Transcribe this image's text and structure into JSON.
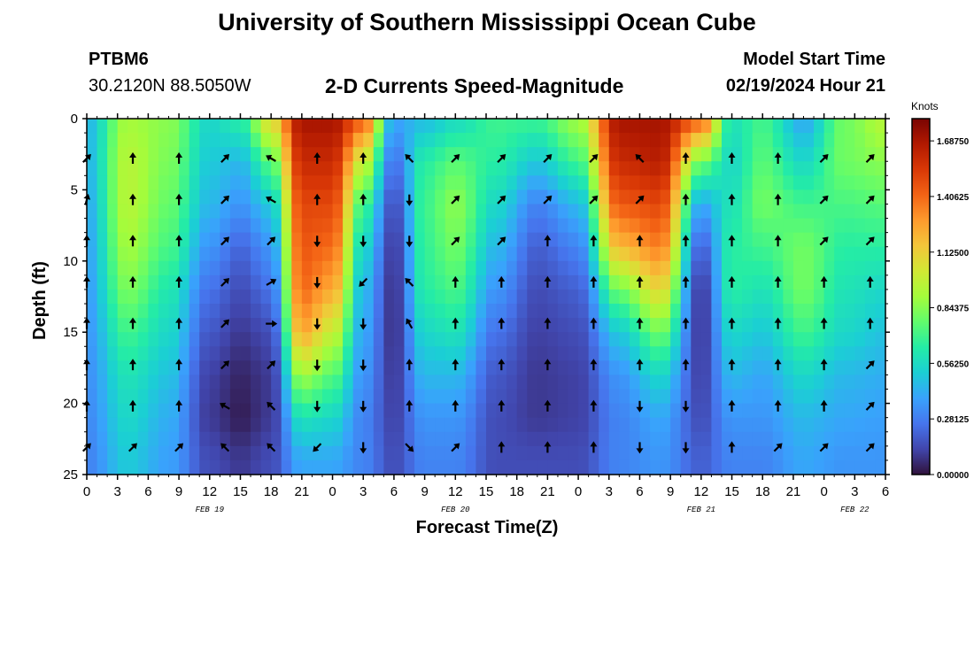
{
  "header": {
    "title": "University of Southern Mississippi Ocean Cube",
    "station_id": "PTBM6",
    "station_coords": "30.2120N  88.5050W",
    "plot_title": "2-D Currents Speed-Magnitude",
    "model_start_label": "Model Start Time",
    "model_start_value": "02/19/2024 Hour 21"
  },
  "footer": {
    "title": "University of Southern Mississippi Ocean Cube"
  },
  "chart_data": {
    "type": "heatmap",
    "title": "2-D Currents Speed-Magnitude",
    "xlabel": "Forecast Time(Z)",
    "ylabel": "Depth (ft)",
    "x_ticks": [
      "0",
      "3",
      "6",
      "9",
      "12",
      "15",
      "18",
      "21",
      "0",
      "3",
      "6",
      "9",
      "12",
      "15",
      "18",
      "21",
      "0",
      "3",
      "6",
      "9",
      "12",
      "15",
      "18",
      "21",
      "0",
      "3",
      "6"
    ],
    "x_range_hours": [
      0,
      78
    ],
    "date_labels": [
      {
        "label": "FEB 19",
        "hour": 12
      },
      {
        "label": "FEB 20",
        "hour": 36
      },
      {
        "label": "FEB 21",
        "hour": 60
      },
      {
        "label": "FEB 22",
        "hour": 75
      }
    ],
    "y_ticks": [
      0,
      5,
      10,
      15,
      20,
      25
    ],
    "ylim": [
      0,
      25
    ],
    "colorbar": {
      "unit": "Knots",
      "min": 0.0,
      "max": 1.8,
      "labels": [
        "1.68750",
        "1.40625",
        "1.12500",
        "0.84375",
        "0.56250",
        "0.28125",
        "0.00000"
      ],
      "label_values": [
        1.6875,
        1.40625,
        1.125,
        0.84375,
        0.5625,
        0.28125,
        0.0
      ],
      "colormap": [
        "#30123b",
        "#4145ab",
        "#4675ed",
        "#39a2fc",
        "#1bcfd4",
        "#24eca6",
        "#61fc6c",
        "#a4fc3b",
        "#d1e834",
        "#f3c63a",
        "#fe9b2d",
        "#f36315",
        "#d93806",
        "#b11901",
        "#7a0402"
      ]
    },
    "depths_ft": [
      0,
      3,
      6,
      9,
      12,
      15,
      18,
      21,
      24
    ],
    "speed_profiles": [
      {
        "hour": 0,
        "speeds": [
          0.45,
          0.45,
          0.42,
          0.4,
          0.38,
          0.36,
          0.34,
          0.32,
          0.3
        ]
      },
      {
        "hour": 4,
        "speeds": [
          0.9,
          0.95,
          0.95,
          0.9,
          0.82,
          0.7,
          0.6,
          0.55,
          0.5
        ]
      },
      {
        "hour": 8,
        "speeds": [
          0.85,
          0.82,
          0.78,
          0.72,
          0.62,
          0.55,
          0.48,
          0.42,
          0.38
        ]
      },
      {
        "hour": 12,
        "speeds": [
          0.55,
          0.5,
          0.45,
          0.35,
          0.25,
          0.18,
          0.12,
          0.1,
          0.15
        ]
      },
      {
        "hour": 15,
        "speeds": [
          0.65,
          0.45,
          0.35,
          0.22,
          0.15,
          0.1,
          0.05,
          0.03,
          0.1
        ]
      },
      {
        "hour": 18,
        "speeds": [
          1.1,
          0.75,
          0.5,
          0.35,
          0.25,
          0.15,
          0.1,
          0.1,
          0.15
        ]
      },
      {
        "hour": 21,
        "speeds": [
          1.7,
          1.6,
          1.5,
          1.45,
          1.4,
          1.25,
          0.9,
          0.6,
          0.4
        ]
      },
      {
        "hour": 24,
        "speeds": [
          1.7,
          1.6,
          1.5,
          1.4,
          1.25,
          1.0,
          0.75,
          0.55,
          0.4
        ]
      },
      {
        "hour": 27,
        "speeds": [
          1.45,
          1.0,
          0.7,
          0.55,
          0.45,
          0.4,
          0.35,
          0.3,
          0.3
        ]
      },
      {
        "hour": 30,
        "speeds": [
          0.4,
          0.25,
          0.15,
          0.1,
          0.08,
          0.08,
          0.1,
          0.12,
          0.15
        ]
      },
      {
        "hour": 33,
        "speeds": [
          0.45,
          0.65,
          0.7,
          0.68,
          0.65,
          0.55,
          0.45,
          0.35,
          0.3
        ]
      },
      {
        "hour": 36,
        "speeds": [
          0.55,
          0.75,
          0.85,
          0.8,
          0.72,
          0.6,
          0.45,
          0.35,
          0.3
        ]
      },
      {
        "hour": 40,
        "speeds": [
          0.7,
          0.65,
          0.55,
          0.45,
          0.35,
          0.25,
          0.18,
          0.15,
          0.15
        ]
      },
      {
        "hour": 44,
        "speeds": [
          0.7,
          0.5,
          0.3,
          0.2,
          0.15,
          0.12,
          0.1,
          0.1,
          0.15
        ]
      },
      {
        "hour": 48,
        "speeds": [
          0.9,
          0.7,
          0.45,
          0.3,
          0.2,
          0.15,
          0.12,
          0.12,
          0.15
        ]
      },
      {
        "hour": 52,
        "speeds": [
          1.7,
          1.6,
          1.45,
          1.2,
          0.8,
          0.5,
          0.35,
          0.3,
          0.3
        ]
      },
      {
        "hour": 56,
        "speeds": [
          1.7,
          1.65,
          1.5,
          1.35,
          1.1,
          0.8,
          0.55,
          0.4,
          0.35
        ]
      },
      {
        "hour": 60,
        "speeds": [
          1.45,
          0.8,
          0.4,
          0.2,
          0.1,
          0.1,
          0.12,
          0.15,
          0.2
        ]
      },
      {
        "hour": 63,
        "speeds": [
          0.6,
          0.55,
          0.6,
          0.65,
          0.65,
          0.55,
          0.45,
          0.35,
          0.3
        ]
      },
      {
        "hour": 66,
        "speeds": [
          0.7,
          0.75,
          0.8,
          0.7,
          0.6,
          0.5,
          0.4,
          0.35,
          0.3
        ]
      },
      {
        "hour": 70,
        "speeds": [
          0.4,
          0.55,
          0.7,
          0.8,
          0.8,
          0.7,
          0.55,
          0.45,
          0.4
        ]
      },
      {
        "hour": 74,
        "speeds": [
          0.8,
          0.8,
          0.72,
          0.65,
          0.6,
          0.55,
          0.45,
          0.4,
          0.35
        ]
      },
      {
        "hour": 78,
        "speeds": [
          0.95,
          0.85,
          0.75,
          0.65,
          0.55,
          0.48,
          0.42,
          0.38,
          0.35
        ]
      }
    ],
    "vector_times_hours": [
      0,
      4.5,
      9,
      13.5,
      18,
      22.5,
      27,
      31.5,
      36,
      40.5,
      45,
      49.5,
      54,
      58.5,
      63,
      67.5,
      72,
      76.5
    ],
    "vector_depths_ft": [
      2.8,
      5.7,
      8.6,
      11.5,
      14.4,
      17.3,
      20.2,
      23.1
    ],
    "vector_direction_deg": [
      [
        45,
        0,
        0,
        45,
        300,
        0,
        0,
        315,
        45,
        45,
        45,
        45,
        315,
        0,
        0,
        0,
        45,
        45
      ],
      [
        15,
        0,
        0,
        45,
        300,
        0,
        0,
        180,
        45,
        45,
        45,
        45,
        45,
        0,
        0,
        0,
        45,
        45
      ],
      [
        0,
        0,
        0,
        45,
        45,
        180,
        180,
        180,
        45,
        45,
        0,
        0,
        0,
        0,
        0,
        0,
        45,
        45
      ],
      [
        0,
        0,
        0,
        45,
        60,
        180,
        225,
        315,
        0,
        0,
        0,
        0,
        0,
        0,
        0,
        0,
        0,
        0
      ],
      [
        0,
        0,
        0,
        45,
        90,
        180,
        180,
        330,
        0,
        0,
        0,
        0,
        0,
        0,
        0,
        0,
        0,
        0
      ],
      [
        0,
        0,
        0,
        45,
        45,
        180,
        180,
        0,
        0,
        0,
        0,
        0,
        0,
        0,
        0,
        0,
        0,
        45
      ],
      [
        0,
        0,
        0,
        300,
        315,
        180,
        180,
        0,
        0,
        0,
        0,
        0,
        180,
        180,
        0,
        0,
        0,
        45
      ],
      [
        45,
        45,
        45,
        315,
        315,
        225,
        180,
        135,
        45,
        0,
        0,
        0,
        180,
        180,
        0,
        45,
        45,
        45
      ]
    ]
  }
}
